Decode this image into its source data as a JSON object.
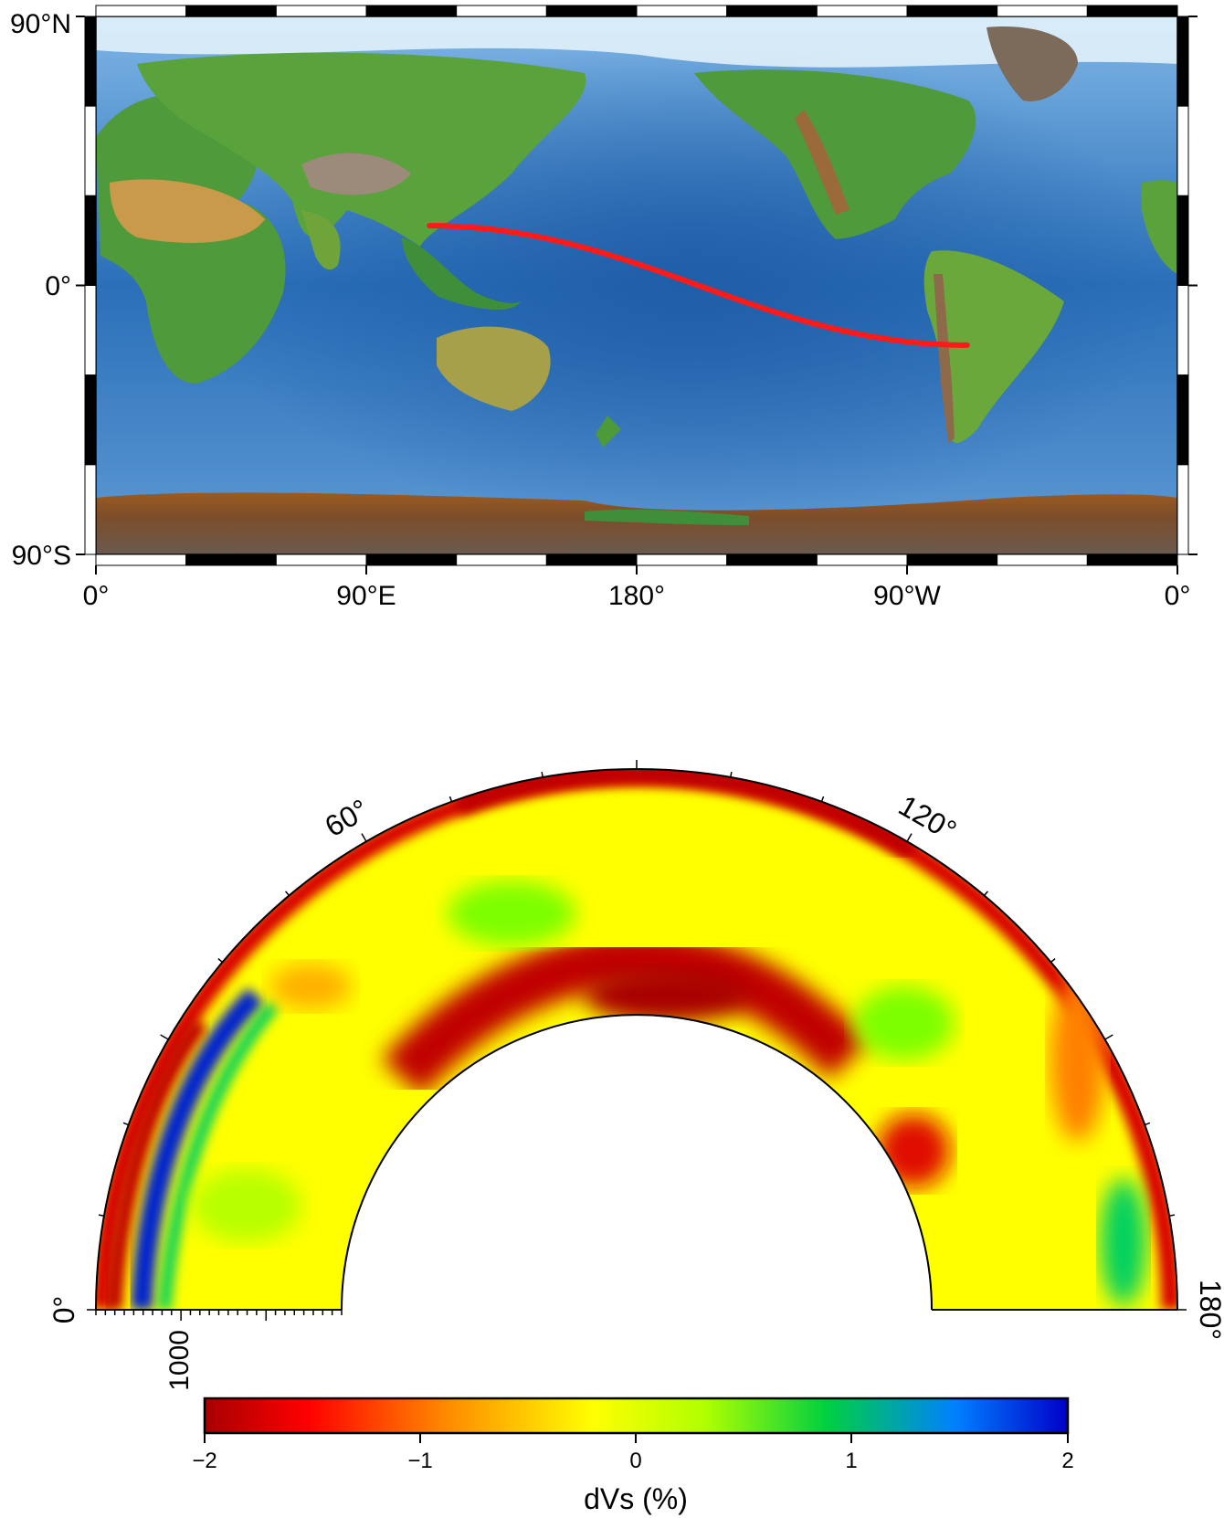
{
  "map": {
    "lat_labels": [
      "90°N",
      "0°",
      "90°S"
    ],
    "lon_labels": [
      "0°",
      "90°E",
      "180°",
      "90°W",
      "0°"
    ],
    "lon_range": [
      0,
      360
    ],
    "lat_range": [
      -90,
      90
    ],
    "path": {
      "color": "#ff1a1a",
      "start": {
        "lon": 111,
        "lat": 20
      },
      "end": {
        "lon": -70,
        "lat": -20
      }
    }
  },
  "section": {
    "angle_labels": [
      "60°",
      "120°"
    ],
    "end_labels": [
      "0°",
      "180°"
    ],
    "depth_label": "1000",
    "angle_range": [
      0,
      180
    ]
  },
  "colorbar": {
    "title": "dVs (%)",
    "ticks": [
      "−2",
      "−1",
      "0",
      "1",
      "2"
    ],
    "range": [
      -2,
      2
    ],
    "colors": [
      "#a80000",
      "#ff0000",
      "#ff8a00",
      "#ffff00",
      "#7dff00",
      "#00d000",
      "#0080ff",
      "#0000c8"
    ]
  }
}
